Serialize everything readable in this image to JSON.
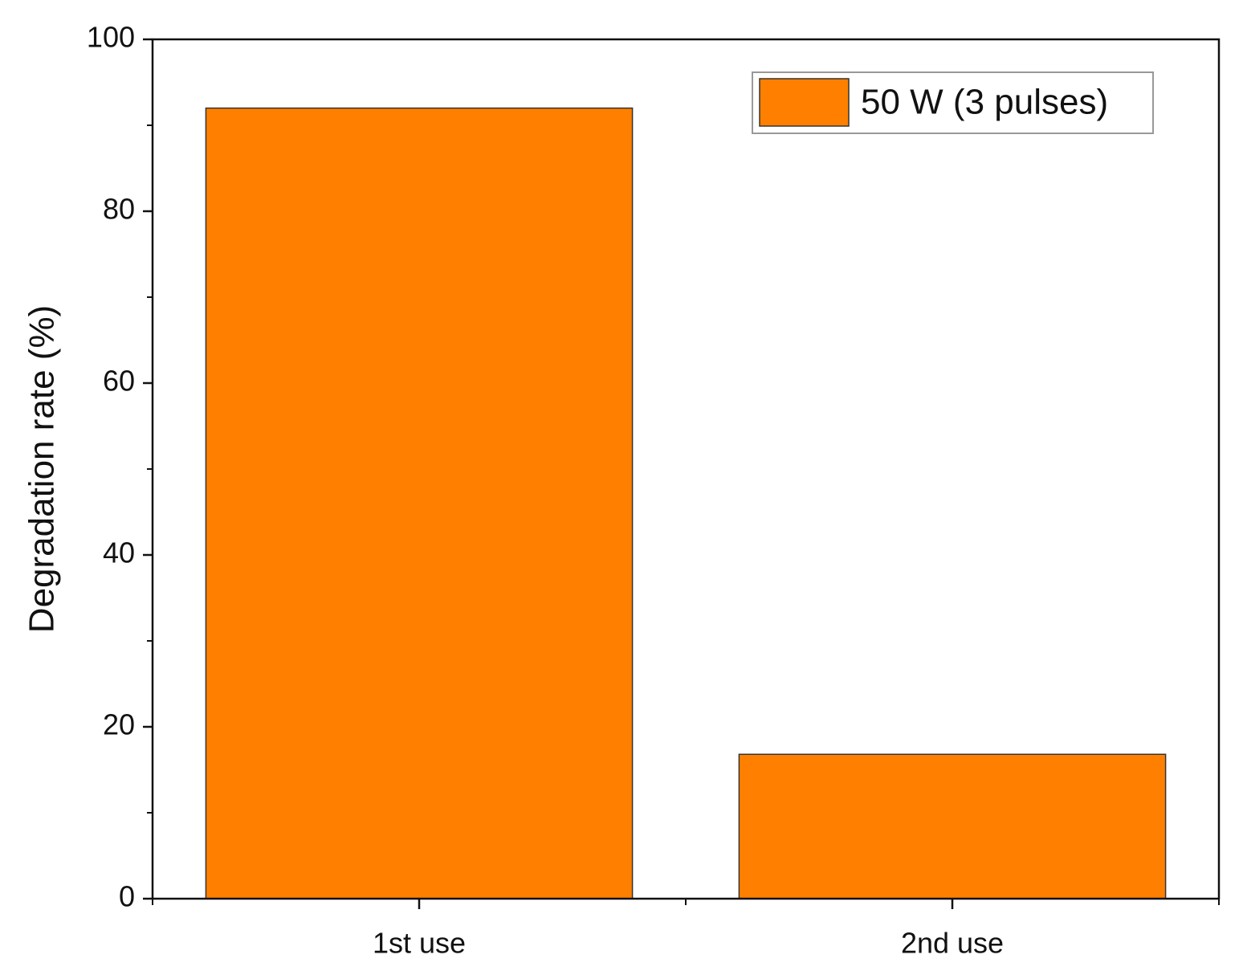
{
  "chart_data": {
    "type": "bar",
    "y_label": "Degradation rate (%)",
    "categories": [
      "1st use",
      "2nd use"
    ],
    "series": [
      {
        "name": "50 W (3 pulses)",
        "color": "#ff8000",
        "values": [
          92,
          16.8
        ]
      }
    ],
    "ylim": [
      0,
      100
    ],
    "yticks": [
      0,
      20,
      40,
      60,
      80,
      100
    ],
    "yminorticks": [
      10,
      30,
      50,
      70,
      90
    ],
    "grid": false,
    "legend": "upper right"
  }
}
